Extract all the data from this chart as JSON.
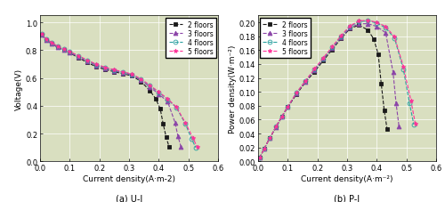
{
  "background_color": "#d9dfc0",
  "subplot_a_title": "(a) U-I",
  "subplot_b_title": "(b) P-I",
  "xlabel_a": "Current density(A·m-2)",
  "xlabel_b": "Current density(A·m⁻²)",
  "ylabel_a": "Voltage(V)",
  "ylabel_b": "Power density(W·m⁻²)",
  "xlim": [
    0,
    0.6
  ],
  "ylim_a": [
    0.0,
    1.05
  ],
  "ylim_b": [
    0.0,
    0.21
  ],
  "yticks_a": [
    0.0,
    0.2,
    0.4,
    0.6,
    0.8,
    1.0
  ],
  "yticks_b": [
    0.0,
    0.02,
    0.04,
    0.06,
    0.08,
    0.1,
    0.12,
    0.14,
    0.16,
    0.18,
    0.2
  ],
  "xticks": [
    0.0,
    0.1,
    0.2,
    0.3,
    0.4,
    0.5,
    0.6
  ],
  "floors": [
    "2 floors",
    "3 floors",
    "4 floors",
    "5 floors"
  ],
  "colors": [
    "#1a1a1a",
    "#8b44a8",
    "#2aa0a0",
    "#ff3399"
  ],
  "markers": [
    "s",
    "^",
    "o",
    "*"
  ],
  "marker_filled": [
    true,
    true,
    false,
    true
  ],
  "linestyle": "--",
  "ui_data": {
    "2": {
      "x": [
        0.005,
        0.02,
        0.04,
        0.06,
        0.08,
        0.1,
        0.13,
        0.16,
        0.19,
        0.22,
        0.25,
        0.28,
        0.31,
        0.34,
        0.37,
        0.39,
        0.405,
        0.415,
        0.425,
        0.435
      ],
      "y": [
        0.91,
        0.875,
        0.845,
        0.82,
        0.8,
        0.78,
        0.745,
        0.71,
        0.68,
        0.66,
        0.645,
        0.63,
        0.615,
        0.575,
        0.51,
        0.45,
        0.38,
        0.27,
        0.175,
        0.105
      ]
    },
    "3": {
      "x": [
        0.005,
        0.02,
        0.04,
        0.06,
        0.08,
        0.1,
        0.13,
        0.16,
        0.19,
        0.22,
        0.25,
        0.28,
        0.31,
        0.34,
        0.37,
        0.4,
        0.43,
        0.455,
        0.465,
        0.475
      ],
      "y": [
        0.91,
        0.875,
        0.845,
        0.82,
        0.8,
        0.782,
        0.752,
        0.718,
        0.69,
        0.667,
        0.651,
        0.636,
        0.62,
        0.583,
        0.535,
        0.485,
        0.43,
        0.28,
        0.18,
        0.105
      ]
    },
    "4": {
      "x": [
        0.005,
        0.02,
        0.04,
        0.06,
        0.08,
        0.1,
        0.13,
        0.16,
        0.19,
        0.22,
        0.25,
        0.28,
        0.31,
        0.34,
        0.37,
        0.4,
        0.43,
        0.46,
        0.49,
        0.51,
        0.525
      ],
      "y": [
        0.92,
        0.88,
        0.852,
        0.825,
        0.806,
        0.787,
        0.758,
        0.724,
        0.696,
        0.673,
        0.656,
        0.641,
        0.625,
        0.59,
        0.545,
        0.497,
        0.446,
        0.385,
        0.27,
        0.165,
        0.1
      ]
    },
    "5": {
      "x": [
        0.005,
        0.02,
        0.04,
        0.06,
        0.08,
        0.1,
        0.13,
        0.16,
        0.19,
        0.22,
        0.25,
        0.28,
        0.31,
        0.34,
        0.37,
        0.4,
        0.43,
        0.46,
        0.49,
        0.515,
        0.53
      ],
      "y": [
        0.92,
        0.882,
        0.854,
        0.827,
        0.808,
        0.789,
        0.76,
        0.727,
        0.699,
        0.676,
        0.659,
        0.644,
        0.628,
        0.593,
        0.548,
        0.5,
        0.45,
        0.39,
        0.278,
        0.17,
        0.102
      ]
    }
  },
  "pi_data": {
    "2": {
      "x": [
        0.005,
        0.02,
        0.04,
        0.06,
        0.08,
        0.1,
        0.13,
        0.16,
        0.19,
        0.22,
        0.25,
        0.28,
        0.31,
        0.34,
        0.37,
        0.39,
        0.405,
        0.415,
        0.425,
        0.435
      ],
      "y": [
        0.005,
        0.018,
        0.034,
        0.049,
        0.064,
        0.078,
        0.097,
        0.114,
        0.129,
        0.145,
        0.161,
        0.177,
        0.191,
        0.196,
        0.189,
        0.176,
        0.154,
        0.112,
        0.074,
        0.046
      ]
    },
    "3": {
      "x": [
        0.005,
        0.02,
        0.04,
        0.06,
        0.08,
        0.1,
        0.13,
        0.16,
        0.19,
        0.22,
        0.25,
        0.28,
        0.31,
        0.34,
        0.37,
        0.4,
        0.43,
        0.455,
        0.465,
        0.475
      ],
      "y": [
        0.005,
        0.018,
        0.034,
        0.049,
        0.064,
        0.078,
        0.098,
        0.115,
        0.131,
        0.147,
        0.163,
        0.178,
        0.192,
        0.198,
        0.198,
        0.194,
        0.185,
        0.128,
        0.084,
        0.05
      ]
    },
    "4": {
      "x": [
        0.005,
        0.02,
        0.04,
        0.06,
        0.08,
        0.1,
        0.13,
        0.16,
        0.19,
        0.22,
        0.25,
        0.28,
        0.31,
        0.34,
        0.37,
        0.4,
        0.43,
        0.46,
        0.49,
        0.51,
        0.525
      ],
      "y": [
        0.005,
        0.018,
        0.034,
        0.05,
        0.065,
        0.079,
        0.099,
        0.116,
        0.132,
        0.148,
        0.164,
        0.18,
        0.194,
        0.201,
        0.202,
        0.199,
        0.192,
        0.177,
        0.132,
        0.084,
        0.053
      ]
    },
    "5": {
      "x": [
        0.005,
        0.02,
        0.04,
        0.06,
        0.08,
        0.1,
        0.13,
        0.16,
        0.19,
        0.22,
        0.25,
        0.28,
        0.31,
        0.34,
        0.37,
        0.4,
        0.43,
        0.46,
        0.49,
        0.515,
        0.53
      ],
      "y": [
        0.005,
        0.018,
        0.034,
        0.05,
        0.065,
        0.079,
        0.099,
        0.116,
        0.133,
        0.149,
        0.165,
        0.181,
        0.195,
        0.202,
        0.203,
        0.2,
        0.194,
        0.179,
        0.136,
        0.088,
        0.054
      ]
    }
  },
  "markersize": 3.5,
  "linewidth": 0.8,
  "legend_fontsize": 5.5,
  "tick_fontsize": 6,
  "label_fontsize": 6.5,
  "title_fontsize": 7
}
